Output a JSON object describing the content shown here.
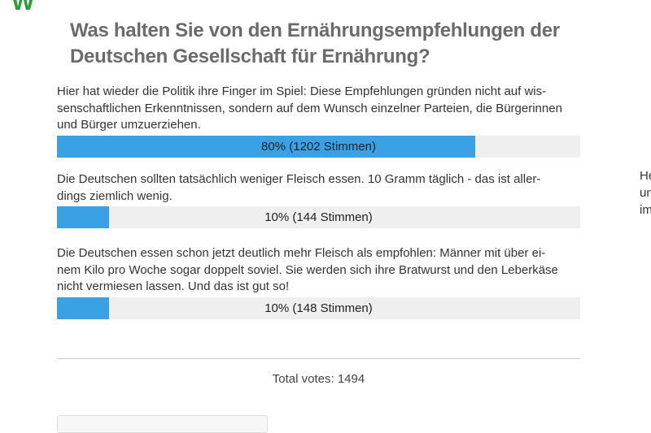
{
  "header": {
    "logo": "W"
  },
  "poll": {
    "question_lines": [
      "Was halten Sie von den Ernährungsempfehlungen der",
      "Deutschen Gesellschaft für Ernährung?"
    ],
    "options": [
      {
        "lines": [
          "Hier hat wieder die Politik ihre Finger im Spiel: Diese Empfehlungen gründen nicht auf wis-",
          "senschaftlichen Erkenntnissen, sondern auf dem Wunsch einzelner Parteien, die Bürgerinnen",
          "und Bürger umzuerziehen."
        ],
        "percent": 80,
        "label": "80% (1202 Stimmen)"
      },
      {
        "lines": [
          "Die Deutschen sollten tatsächlich weniger Fleisch essen. 10 Gramm täglich - das ist aller-",
          "dings ziemlich wenig."
        ],
        "percent": 10,
        "label": "10% (144 Stimmen)"
      },
      {
        "lines": [
          "Die Deutschen essen schon jetzt deutlich mehr Fleisch als empfohlen: Männer mit über ei-",
          "nem Kilo pro Woche sogar doppelt soviel. Sie werden sich ihre Bratwurst und den Leberkäse",
          "nicht vermiesen lassen. Und das ist gut so!"
        ],
        "percent": 10,
        "label": "10% (148 Stimmen)"
      }
    ],
    "total": "Total votes: 1494"
  },
  "sidebar": {
    "fragments": [
      "He",
      "un",
      "im"
    ]
  }
}
